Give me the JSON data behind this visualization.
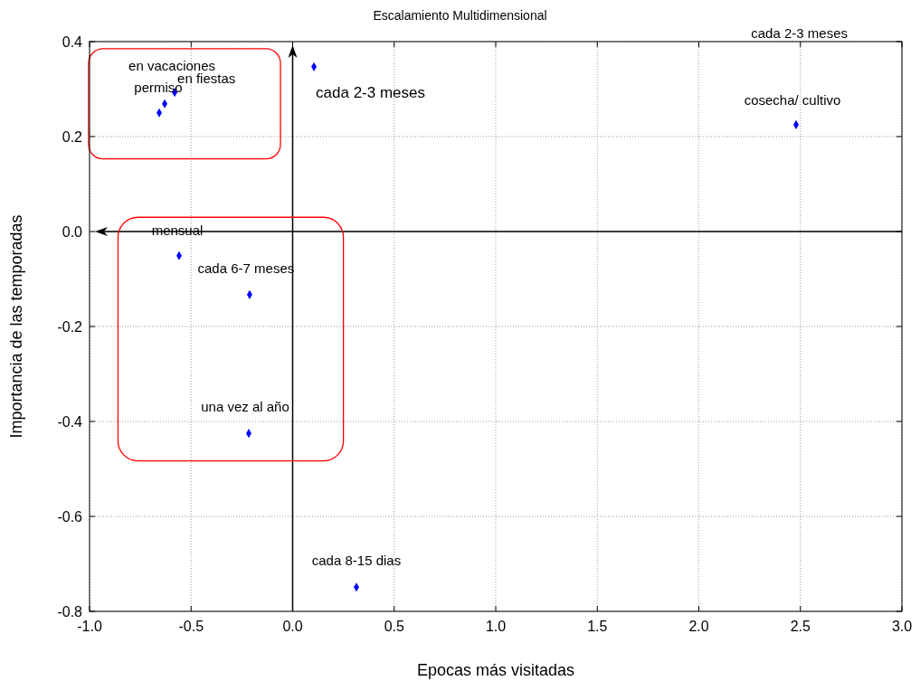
{
  "chart_data": {
    "type": "scatter",
    "title": "Escalamiento Multidimensional",
    "xlabel": "Epocas más visitadas",
    "ylabel": "Importancia de las temporadas",
    "series": [
      {
        "color": "#0000ff",
        "x": [
          0.105,
          2.479,
          -0.581,
          -0.63,
          -0.657,
          -0.559,
          -0.212,
          -0.216,
          0.314
        ],
        "values": [
          0.347,
          0.225,
          0.293,
          0.269,
          0.25,
          -0.051,
          -0.133,
          -0.425,
          -0.749
        ]
      }
    ],
    "marker": "diamond",
    "xlim": [
      -1,
      3
    ],
    "ylim": [
      -0.8,
      0.4
    ],
    "xticks": [
      {
        "value": -1,
        "label": "-1.0"
      },
      {
        "value": -0.5,
        "label": "-0.5"
      },
      {
        "value": 0,
        "label": "0.0"
      },
      {
        "value": 0.5,
        "label": "0.5"
      },
      {
        "value": 1,
        "label": "1.0"
      },
      {
        "value": 1.5,
        "label": "1.5"
      },
      {
        "value": 2,
        "label": "2.0"
      },
      {
        "value": 2.5,
        "label": "2.5"
      },
      {
        "value": 3,
        "label": "3.0"
      }
    ],
    "yticks": [
      {
        "value": -0.8,
        "label": "-0.8"
      },
      {
        "value": -0.6,
        "label": "-0.6"
      },
      {
        "value": -0.4,
        "label": "-0.4"
      },
      {
        "value": -0.2,
        "label": "-0.2"
      },
      {
        "value": 0,
        "label": "0.0"
      },
      {
        "value": 0.2,
        "label": "0.2"
      },
      {
        "value": 0.4,
        "label": "0.4"
      }
    ],
    "grid": true,
    "annotations": [
      {
        "text": "cada 2-3 meses",
        "x": 0.105,
        "y": 0.347
      },
      {
        "text": "cosecha/ cultivo",
        "x": 2.479,
        "y": 0.225
      },
      {
        "text": "en vacaciones",
        "x": -0.581,
        "y": 0.293
      },
      {
        "text": "en fiestas",
        "x": -0.63,
        "y": 0.269
      },
      {
        "text": "permiso",
        "x": -0.657,
        "y": 0.25
      },
      {
        "text": "mensual",
        "x": -0.559,
        "y": -0.051
      },
      {
        "text": "cada 6-7 meses",
        "x": -0.212,
        "y": -0.133
      },
      {
        "text": "una vez al año",
        "x": -0.216,
        "y": -0.425
      },
      {
        "text": "cada 8-15 dias",
        "x": 0.314,
        "y": -0.749
      },
      "cada 2-3 meses"
    ]
  }
}
